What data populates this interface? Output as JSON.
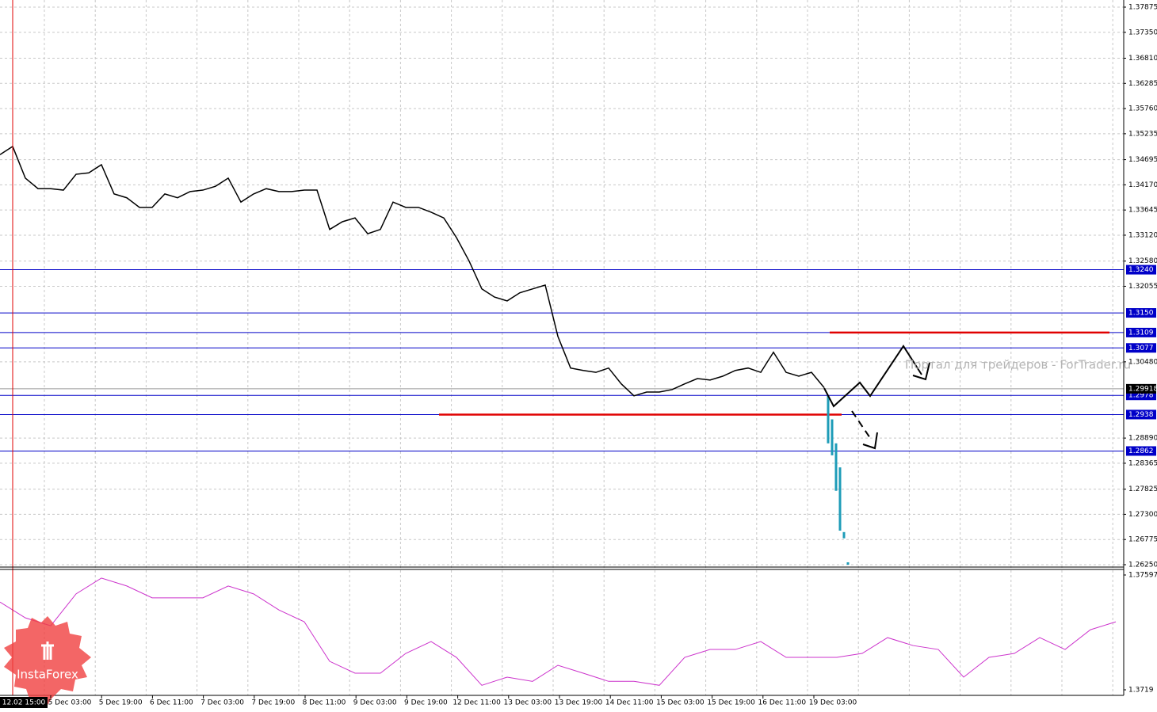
{
  "chart_data": {
    "type": "line",
    "ylim": [
      1.2625,
      1.37875
    ],
    "yticks": [
      1.37875,
      {
        "value": 1.3735,
        "label": "1.37350"
      },
      {
        "value": 1.3681,
        "label": "1.36810"
      },
      1.36285,
      {
        "value": 1.3576,
        "label": "1.35760"
      },
      1.35235,
      1.34695,
      {
        "value": 1.3417,
        "label": "1.34170"
      },
      1.33645,
      {
        "value": 1.3312,
        "label": "1.33120"
      },
      {
        "value": 1.3258,
        "label": "1.32580"
      },
      1.32055,
      {
        "value": 1.3048,
        "label": "1.30480"
      },
      {
        "value": 1.2889,
        "label": "1.28890"
      },
      1.28365,
      1.27825,
      {
        "value": 1.273,
        "label": "1.27300"
      },
      1.26775,
      {
        "value": 1.2625,
        "label": "1.26250"
      }
    ],
    "grid": true,
    "series": [
      {
        "color": "#000000",
        "values": [
          1.348,
          1.3497,
          1.3431,
          1.3409,
          1.3409,
          1.3406,
          1.3439,
          1.3442,
          1.3459,
          1.3398,
          1.339,
          1.337,
          1.337,
          1.3398,
          1.339,
          1.3403,
          1.3406,
          1.3414,
          1.3431,
          1.3381,
          1.3398,
          1.3409,
          1.3403,
          1.3403,
          1.3406,
          1.3406,
          1.3324,
          1.334,
          1.3348,
          1.3315,
          1.3324,
          1.3381,
          1.337,
          1.337,
          1.336,
          1.3348,
          1.3307,
          1.3258,
          1.32,
          1.3183,
          1.3175,
          1.3192,
          1.32,
          1.3208,
          1.3101,
          1.3035,
          1.303,
          1.3026,
          1.3035,
          1.3002,
          1.2977,
          1.2985,
          1.2985,
          1.299,
          1.3002,
          1.3013,
          1.301,
          1.3018,
          1.303,
          1.3035,
          1.3026,
          1.3068,
          1.3026,
          1.3018,
          1.3026,
          1.2994
        ]
      }
    ],
    "projection": {
      "color": "#1e9cb8",
      "bars": [
        {
          "high": 1.2977,
          "low": 1.2878
        },
        {
          "high": 1.2928,
          "low": 1.2853
        },
        {
          "high": 1.2878,
          "low": 1.2779
        },
        {
          "high": 1.2828,
          "low": 1.2696
        },
        {
          "high": 1.2693,
          "low": 1.268
        },
        {
          "high": 1.263,
          "low": 1.2625
        }
      ]
    },
    "levels": [
      {
        "value": 1.324,
        "label": "1.3240"
      },
      {
        "value": 1.315,
        "label": "1.3150"
      },
      1.3109,
      1.3077,
      1.2978,
      1.2938,
      1.2862
    ],
    "level_color": "#0000c8",
    "red_lines": [
      1.3109,
      1.2938
    ],
    "red_color": "#e00000",
    "current_price": 1.29918,
    "cursor_time": "12.02 15:00",
    "x_labels": [
      "5 Dec 03:00",
      "5 Dec 19:00",
      "6 Dec 11:00",
      "7 Dec 03:00",
      "7 Dec 19:00",
      "8 Dec 11:00",
      "9 Dec 03:00",
      "9 Dec 19:00",
      "12 Dec 11:00",
      "13 Dec 03:00",
      "13 Dec 19:00",
      "14 Dec 11:00",
      "15 Dec 03:00",
      "15 Dec 19:00",
      "16 Dec 11:00",
      "19 Dec 03:00"
    ],
    "watermark": "Портал для трейдеров - ForTrader.ru",
    "logo": "InstaForex",
    "indicator": {
      "type": "line",
      "ylim": [
        1.3719,
        1.37597
      ],
      "yticks": [
        1.37597,
        1.3719
      ],
      "color": "#cc33cc",
      "values": [
        1.37501,
        1.37445,
        1.37417,
        1.3753,
        1.37586,
        1.37558,
        1.37516,
        1.37516,
        1.37516,
        1.37558,
        1.3753,
        1.37473,
        1.37431,
        1.37291,
        1.37249,
        1.37249,
        1.37319,
        1.37361,
        1.37305,
        1.37206,
        1.37235,
        1.3722,
        1.37277,
        1.37249,
        1.3722,
        1.3722,
        1.37206,
        1.37305,
        1.37333,
        1.37333,
        1.37361,
        1.37305,
        1.37305,
        1.37305,
        1.37319,
        1.37375,
        1.37347,
        1.37333,
        1.37235,
        1.37305,
        1.37319,
        1.37375,
        1.37333,
        1.37403,
        1.37431
      ]
    }
  }
}
